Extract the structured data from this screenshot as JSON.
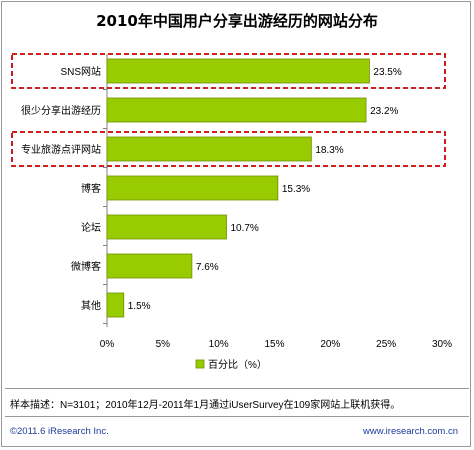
{
  "chart_data": {
    "type": "bar",
    "orientation": "horizontal",
    "title": "2010年中国用户分享出游经历的网站分布",
    "categories": [
      "SNS网站",
      "很少分享出游经历",
      "专业旅游点评网站",
      "博客",
      "论坛",
      "微博客",
      "其他"
    ],
    "values": [
      23.5,
      23.2,
      18.3,
      15.3,
      10.7,
      7.6,
      1.5
    ],
    "value_labels": [
      "23.5%",
      "23.2%",
      "18.3%",
      "15.3%",
      "10.7%",
      "7.6%",
      "1.5%"
    ],
    "xlim": [
      0,
      30
    ],
    "xticks": [
      "0%",
      "5%",
      "10%",
      "15%",
      "20%",
      "25%",
      "30%"
    ],
    "legend": "百分比（%）",
    "legend_position": "bottom",
    "highlighted_categories": [
      "SNS网站",
      "专业旅游点评网站"
    ],
    "colors": {
      "bar": "#99cc00",
      "highlight": "#cc0000"
    }
  },
  "note": "样本描述：N=3101；2010年12月-2011年1月通过iUserSurvey在109家网站上联机获得。",
  "footer": {
    "left": "©2011.6 iResearch Inc.",
    "right": "www.iresearch.com.cn"
  }
}
